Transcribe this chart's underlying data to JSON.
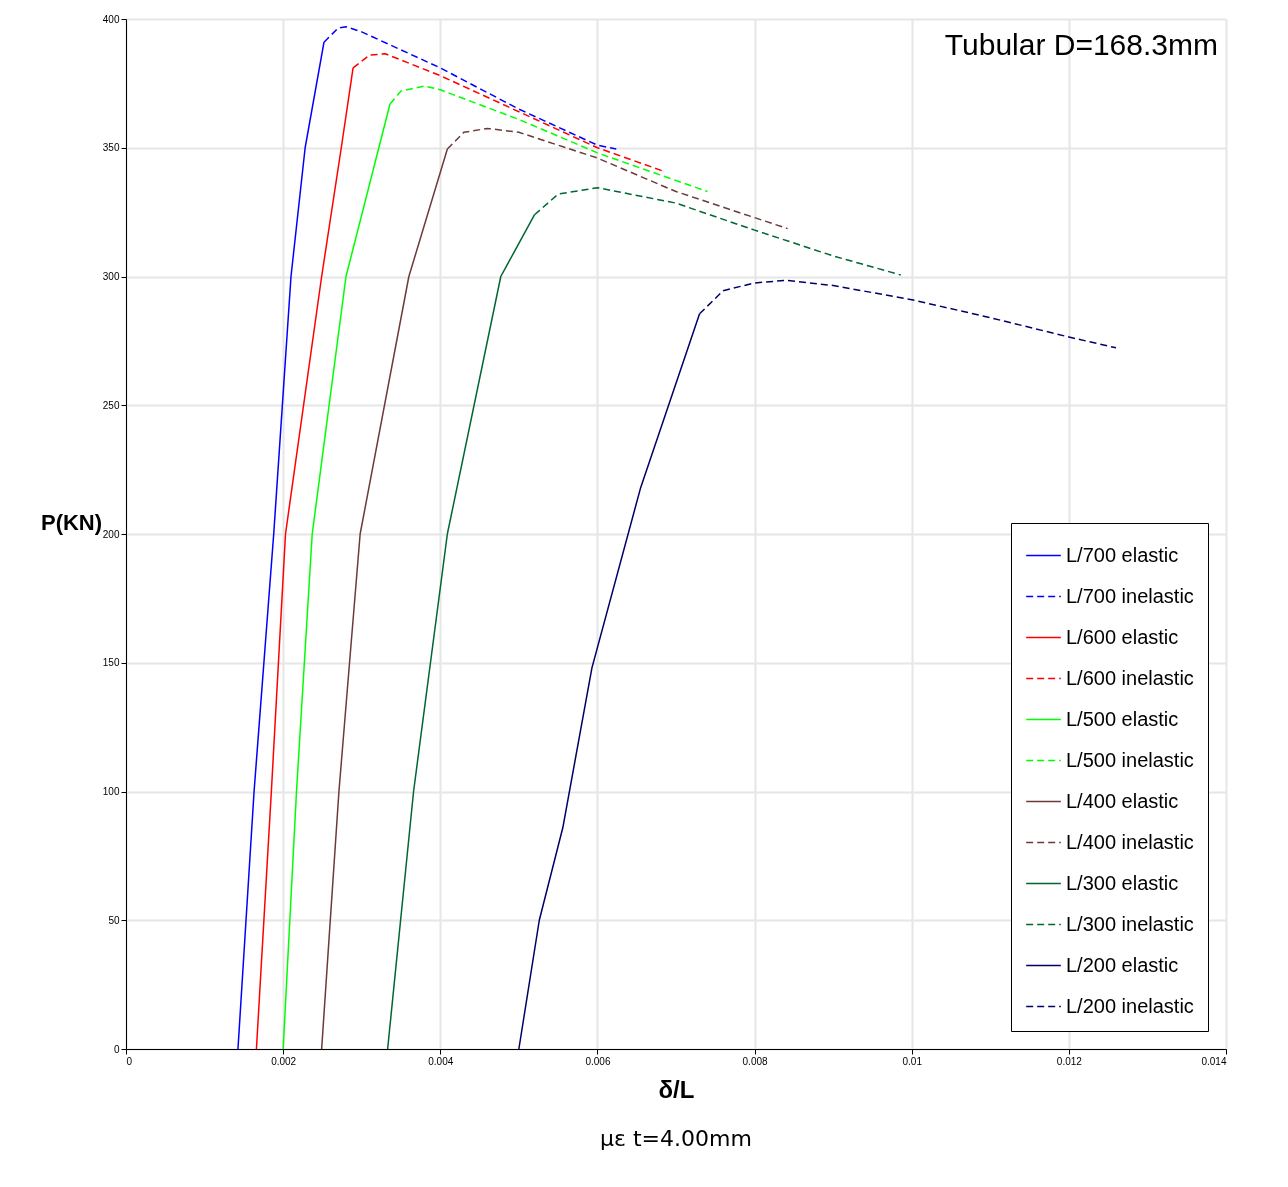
{
  "chart_data": {
    "type": "line",
    "title": "Tubular D=168.3mm",
    "xlabel": "δ/L",
    "ylabel": "P(KN)",
    "annotations": [
      "με t=4.00mm"
    ],
    "xlim": [
      0,
      0.014
    ],
    "ylim": [
      0,
      400
    ],
    "xticks": [
      0,
      0.002,
      0.004,
      0.006,
      0.008,
      0.01,
      0.012,
      0.014
    ],
    "yticks": [
      0,
      50,
      100,
      150,
      200,
      250,
      300,
      350,
      400
    ],
    "grid": true,
    "legend": "bottom right",
    "marker": "none",
    "series": [
      {
        "name": "L/700 elastic",
        "color": "#0000ff",
        "line_style": "solid",
        "x": [
          0.001425,
          0.00163,
          0.00188,
          0.0021,
          0.00228,
          0.00252
        ],
        "values": [
          0,
          100,
          200,
          300,
          350,
          391
        ]
      },
      {
        "name": "L/700 inelastic",
        "color": "#0000ff",
        "line_style": "dashed",
        "x": [
          0.00252,
          0.0027,
          0.0028,
          0.003,
          0.004,
          0.005,
          0.006,
          0.00624
        ],
        "values": [
          391,
          396.5,
          397,
          395,
          381,
          365,
          351,
          349.5
        ]
      },
      {
        "name": "L/600 elastic",
        "color": "#ff0000",
        "line_style": "solid",
        "x": [
          0.00166,
          0.00185,
          0.00203,
          0.00249,
          0.00274,
          0.00289
        ],
        "values": [
          0,
          100,
          200,
          300,
          350,
          381
        ]
      },
      {
        "name": "L/600 inelastic",
        "color": "#ff0000",
        "line_style": "dashed",
        "x": [
          0.00289,
          0.0031,
          0.0033,
          0.004,
          0.005,
          0.006,
          0.00683
        ],
        "values": [
          381,
          386,
          386.5,
          378,
          364,
          350,
          341
        ]
      },
      {
        "name": "L/500 elastic",
        "color": "#00ff00",
        "line_style": "solid",
        "x": [
          0.002,
          0.00217,
          0.00237,
          0.0028,
          0.00336
        ],
        "values": [
          0,
          100,
          200,
          300,
          367
        ]
      },
      {
        "name": "L/500 inelastic",
        "color": "#00ff00",
        "line_style": "dashed",
        "x": [
          0.00336,
          0.0035,
          0.0038,
          0.004,
          0.005,
          0.006,
          0.0074
        ],
        "values": [
          367,
          372,
          374,
          372.5,
          361,
          348,
          333
        ]
      },
      {
        "name": "L/400 elastic",
        "color": "#6b3a3a",
        "line_style": "solid",
        "x": [
          0.00249,
          0.00271,
          0.00298,
          0.0036,
          0.00409
        ],
        "values": [
          0,
          100,
          200,
          300,
          349.5
        ]
      },
      {
        "name": "L/400 inelastic",
        "color": "#6b3a3a",
        "line_style": "dashed",
        "x": [
          0.00409,
          0.0043,
          0.0046,
          0.005,
          0.006,
          0.007,
          0.00842
        ],
        "values": [
          349.5,
          356,
          357.5,
          356,
          346,
          333,
          318.6
        ]
      },
      {
        "name": "L/300 elastic",
        "color": "#006633",
        "line_style": "solid",
        "x": [
          0.00333,
          0.00366,
          0.00409,
          0.00477,
          0.0052
        ],
        "values": [
          0,
          100,
          200,
          300,
          324
        ]
      },
      {
        "name": "L/300 inelastic",
        "color": "#006633",
        "line_style": "dashed",
        "x": [
          0.0052,
          0.0055,
          0.006,
          0.007,
          0.008,
          0.009,
          0.00986
        ],
        "values": [
          324,
          332,
          334.5,
          328.5,
          318,
          308,
          300.6
        ]
      },
      {
        "name": "L/200 elastic",
        "color": "#000066",
        "line_style": "solid",
        "x": [
          0.005,
          0.00526,
          0.00556,
          0.00593,
          0.00655,
          0.0073
        ],
        "values": [
          0,
          50,
          86,
          148,
          218,
          285.5
        ]
      },
      {
        "name": "L/200 inelastic",
        "color": "#000066",
        "line_style": "dashed",
        "x": [
          0.0073,
          0.0076,
          0.008,
          0.0084,
          0.009,
          0.01,
          0.011,
          0.012,
          0.0126
        ],
        "values": [
          285.5,
          294.5,
          297.5,
          298.5,
          296.5,
          291,
          284,
          276.5,
          272.3
        ]
      }
    ]
  }
}
